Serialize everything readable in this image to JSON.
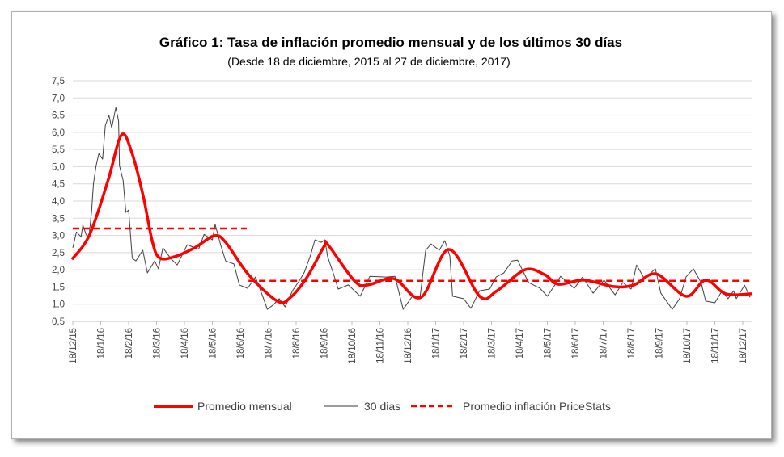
{
  "chart_data": {
    "type": "line",
    "title": "Gráfico 1: Tasa de inflación promedio mensual y de los últimos 30 días",
    "subtitle": "(Desde 18 de diciembre, 2015 al 27 de diciembre, 2017)",
    "xlabel": "",
    "ylabel": "",
    "ylim": [
      0.5,
      7.5
    ],
    "yticks": [
      "0,5",
      "1,0",
      "1,5",
      "2,0",
      "2,5",
      "3,0",
      "3,5",
      "4,0",
      "4,5",
      "5,0",
      "5,5",
      "6,0",
      "6,5",
      "7,0",
      "7,5"
    ],
    "xticks": [
      "18/12/15",
      "18/1/16",
      "18/2/16",
      "18/3/16",
      "18/4/16",
      "18/5/16",
      "18/6/16",
      "18/7/16",
      "18/8/16",
      "18/9/16",
      "18/10/16",
      "18/11/16",
      "18/12/16",
      "18/1/17",
      "18/2/17",
      "18/3/17",
      "18/4/17",
      "18/5/17",
      "18/6/17",
      "18/7/17",
      "18/8/17",
      "18/9/17",
      "18/10/17",
      "18/11/17",
      "18/12/17"
    ],
    "grid": true,
    "legend_position": "bottom",
    "colors": {
      "promedio": "#ff0000",
      "dias30": "#404040",
      "pricestats": "#ff0000",
      "grid": "#d9d9d9"
    },
    "series": [
      {
        "name": "Promedio mensual",
        "style": "thick-solid",
        "points": [
          [
            "2015-12-18",
            2.33
          ],
          [
            "2016-01-06",
            3.03
          ],
          [
            "2016-01-26",
            4.6
          ],
          [
            "2016-02-10",
            5.92
          ],
          [
            "2016-02-21",
            5.45
          ],
          [
            "2016-03-03",
            4.2
          ],
          [
            "2016-03-13",
            2.87
          ],
          [
            "2016-03-21",
            2.35
          ],
          [
            "2016-04-07",
            2.38
          ],
          [
            "2016-04-29",
            2.64
          ],
          [
            "2016-05-20",
            2.99
          ],
          [
            "2016-06-02",
            2.8
          ],
          [
            "2016-06-27",
            1.86
          ],
          [
            "2016-07-28",
            1.09
          ],
          [
            "2016-08-12",
            1.2
          ],
          [
            "2016-08-30",
            1.79
          ],
          [
            "2016-09-18",
            2.68
          ],
          [
            "2016-09-22",
            2.74
          ],
          [
            "2016-10-21",
            1.67
          ],
          [
            "2016-11-05",
            1.56
          ],
          [
            "2016-12-03",
            1.74
          ],
          [
            "2017-01-02",
            1.2
          ],
          [
            "2017-02-02",
            2.59
          ],
          [
            "2017-03-05",
            1.23
          ],
          [
            "2017-03-24",
            1.39
          ],
          [
            "2017-04-24",
            2.0
          ],
          [
            "2017-05-15",
            1.86
          ],
          [
            "2017-05-30",
            1.58
          ],
          [
            "2017-06-27",
            1.7
          ],
          [
            "2017-07-30",
            1.51
          ],
          [
            "2017-08-21",
            1.56
          ],
          [
            "2017-09-15",
            1.88
          ],
          [
            "2017-10-17",
            1.23
          ],
          [
            "2017-11-08",
            1.7
          ],
          [
            "2017-11-30",
            1.3
          ],
          [
            "2017-12-27",
            1.3
          ]
        ]
      },
      {
        "name": "30 dias",
        "style": "thin-solid",
        "points": [
          [
            "2015-12-18",
            2.64
          ],
          [
            "2015-12-22",
            3.1
          ],
          [
            "2015-12-27",
            2.96
          ],
          [
            "2015-12-29",
            3.3
          ],
          [
            "2016-01-02",
            3.03
          ],
          [
            "2016-01-05",
            2.92
          ],
          [
            "2016-01-08",
            3.7
          ],
          [
            "2016-01-10",
            4.5
          ],
          [
            "2016-01-13",
            5.03
          ],
          [
            "2016-01-16",
            5.38
          ],
          [
            "2016-01-20",
            5.22
          ],
          [
            "2016-01-23",
            6.2
          ],
          [
            "2016-01-27",
            6.49
          ],
          [
            "2016-01-30",
            6.13
          ],
          [
            "2016-02-04",
            6.72
          ],
          [
            "2016-02-07",
            6.32
          ],
          [
            "2016-02-08",
            5.03
          ],
          [
            "2016-02-12",
            4.6
          ],
          [
            "2016-02-15",
            3.67
          ],
          [
            "2016-02-18",
            3.74
          ],
          [
            "2016-02-22",
            2.33
          ],
          [
            "2016-02-26",
            2.26
          ],
          [
            "2016-03-03",
            2.57
          ],
          [
            "2016-03-08",
            1.91
          ],
          [
            "2016-03-16",
            2.26
          ],
          [
            "2016-03-20",
            2.03
          ],
          [
            "2016-03-25",
            2.64
          ],
          [
            "2016-04-03",
            2.33
          ],
          [
            "2016-04-10",
            2.14
          ],
          [
            "2016-04-21",
            2.73
          ],
          [
            "2016-05-03",
            2.6
          ],
          [
            "2016-05-09",
            3.03
          ],
          [
            "2016-05-18",
            2.87
          ],
          [
            "2016-05-21",
            3.32
          ],
          [
            "2016-05-27",
            2.73
          ],
          [
            "2016-06-02",
            2.26
          ],
          [
            "2016-06-11",
            2.17
          ],
          [
            "2016-06-17",
            1.56
          ],
          [
            "2016-06-26",
            1.46
          ],
          [
            "2016-07-04",
            1.79
          ],
          [
            "2016-07-12",
            1.23
          ],
          [
            "2016-07-17",
            0.85
          ],
          [
            "2016-07-24",
            0.99
          ],
          [
            "2016-07-30",
            1.16
          ],
          [
            "2016-08-06",
            0.92
          ],
          [
            "2016-08-14",
            1.39
          ],
          [
            "2016-08-22",
            1.7
          ],
          [
            "2016-08-27",
            1.93
          ],
          [
            "2016-09-03",
            2.4
          ],
          [
            "2016-09-08",
            2.87
          ],
          [
            "2016-09-15",
            2.8
          ],
          [
            "2016-09-19",
            2.87
          ],
          [
            "2016-09-22",
            2.38
          ],
          [
            "2016-09-28",
            1.91
          ],
          [
            "2016-10-03",
            1.44
          ],
          [
            "2016-10-14",
            1.56
          ],
          [
            "2016-10-27",
            1.23
          ],
          [
            "2016-11-07",
            1.81
          ],
          [
            "2016-11-25",
            1.79
          ],
          [
            "2016-12-04",
            1.81
          ],
          [
            "2016-12-13",
            0.85
          ],
          [
            "2016-12-23",
            1.23
          ],
          [
            "2017-01-01",
            1.23
          ],
          [
            "2017-01-07",
            2.57
          ],
          [
            "2017-01-13",
            2.75
          ],
          [
            "2017-01-22",
            2.57
          ],
          [
            "2017-01-28",
            2.85
          ],
          [
            "2017-02-03",
            2.4
          ],
          [
            "2017-02-06",
            1.23
          ],
          [
            "2017-02-18",
            1.16
          ],
          [
            "2017-02-26",
            0.88
          ],
          [
            "2017-03-05",
            1.39
          ],
          [
            "2017-03-16",
            1.44
          ],
          [
            "2017-03-23",
            1.79
          ],
          [
            "2017-04-01",
            1.91
          ],
          [
            "2017-04-10",
            2.26
          ],
          [
            "2017-04-16",
            2.28
          ],
          [
            "2017-04-28",
            1.63
          ],
          [
            "2017-05-10",
            1.46
          ],
          [
            "2017-05-18",
            1.23
          ],
          [
            "2017-06-02",
            1.81
          ],
          [
            "2017-06-17",
            1.46
          ],
          [
            "2017-06-26",
            1.79
          ],
          [
            "2017-07-07",
            1.32
          ],
          [
            "2017-07-19",
            1.7
          ],
          [
            "2017-07-31",
            1.27
          ],
          [
            "2017-08-09",
            1.63
          ],
          [
            "2017-08-18",
            1.44
          ],
          [
            "2017-08-24",
            2.14
          ],
          [
            "2017-09-02",
            1.74
          ],
          [
            "2017-09-14",
            2.03
          ],
          [
            "2017-09-20",
            1.32
          ],
          [
            "2017-10-02",
            0.85
          ],
          [
            "2017-10-10",
            1.16
          ],
          [
            "2017-10-17",
            1.79
          ],
          [
            "2017-10-25",
            2.03
          ],
          [
            "2017-11-03",
            1.63
          ],
          [
            "2017-11-08",
            1.09
          ],
          [
            "2017-11-18",
            1.04
          ],
          [
            "2017-11-26",
            1.39
          ],
          [
            "2017-12-02",
            1.16
          ],
          [
            "2017-12-08",
            1.39
          ],
          [
            "2017-12-11",
            1.16
          ],
          [
            "2017-12-20",
            1.55
          ],
          [
            "2017-12-26",
            1.2
          ]
        ]
      },
      {
        "name": "Promedio inflación PriceStats",
        "style": "dashed",
        "segments": [
          {
            "from": "2015-12-18",
            "to": "2016-06-25",
            "value": 3.2
          },
          {
            "from": "2016-06-27",
            "to": "2017-12-27",
            "value": 1.68
          }
        ]
      }
    ]
  }
}
